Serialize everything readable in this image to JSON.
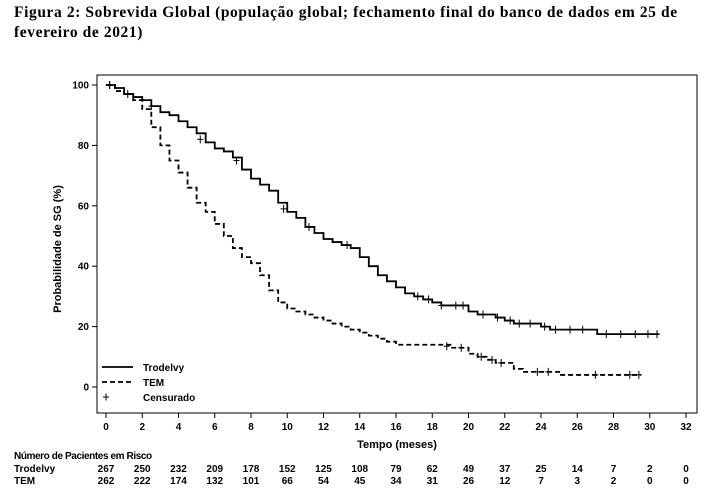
{
  "caption": "Figura 2: Sobrevida Global (população global; fechamento final do banco de dados em 25 de fevereiro de 2021)",
  "chart_data": {
    "type": "line",
    "title": "Figura 2: Sobrevida Global (população global; fechamento final do banco de dados em 25 de fevereiro de 2021)",
    "xlabel": "Tempo (meses)",
    "ylabel": "Probabilidade de SG (%)",
    "xlim": [
      0,
      32
    ],
    "ylim": [
      0,
      100
    ],
    "x_ticks": [
      0,
      2,
      4,
      6,
      8,
      10,
      12,
      14,
      16,
      18,
      20,
      22,
      24,
      26,
      28,
      30,
      32
    ],
    "y_ticks": [
      0,
      20,
      40,
      60,
      80,
      100
    ],
    "grid": false,
    "legend_position": "bottom-left",
    "legend": [
      {
        "label": "Trodelvy",
        "style": "solid"
      },
      {
        "label": "TEM",
        "style": "dashed"
      },
      {
        "label": "Censurado",
        "style": "marker-plus"
      }
    ],
    "series": [
      {
        "name": "Trodelvy",
        "style": "solid",
        "color": "#000000",
        "points": [
          [
            0,
            100
          ],
          [
            0.5,
            99
          ],
          [
            1,
            97
          ],
          [
            1.5,
            96
          ],
          [
            2,
            95
          ],
          [
            2.5,
            93
          ],
          [
            3,
            91
          ],
          [
            3.5,
            90
          ],
          [
            4,
            88
          ],
          [
            4.5,
            86
          ],
          [
            5,
            84
          ],
          [
            5.5,
            81
          ],
          [
            6,
            79
          ],
          [
            6.5,
            78
          ],
          [
            7,
            76
          ],
          [
            7.5,
            72
          ],
          [
            8,
            69
          ],
          [
            8.5,
            67
          ],
          [
            9,
            65
          ],
          [
            9.5,
            61
          ],
          [
            10,
            58
          ],
          [
            10.5,
            56
          ],
          [
            11,
            53
          ],
          [
            11.5,
            51
          ],
          [
            12,
            49
          ],
          [
            12.5,
            48
          ],
          [
            13,
            47
          ],
          [
            13.5,
            46
          ],
          [
            14,
            43
          ],
          [
            14.5,
            40
          ],
          [
            15,
            37
          ],
          [
            15.5,
            35
          ],
          [
            16,
            33
          ],
          [
            16.5,
            31
          ],
          [
            17,
            30
          ],
          [
            17.5,
            29
          ],
          [
            18,
            28
          ],
          [
            18.5,
            27
          ],
          [
            19,
            27
          ],
          [
            19.5,
            27
          ],
          [
            20,
            25
          ],
          [
            20.5,
            24
          ],
          [
            21,
            24
          ],
          [
            21.5,
            23
          ],
          [
            22,
            22
          ],
          [
            22.5,
            21
          ],
          [
            23,
            21
          ],
          [
            23.5,
            21
          ],
          [
            24,
            20
          ],
          [
            24.5,
            19
          ],
          [
            25,
            19
          ],
          [
            26,
            19
          ],
          [
            27,
            19
          ],
          [
            27.1,
            17.5
          ],
          [
            28,
            17.5
          ],
          [
            29,
            17.5
          ],
          [
            30,
            17.5
          ],
          [
            30.5,
            17.5
          ]
        ],
        "censored": [
          [
            0.2,
            100
          ],
          [
            1.2,
            97
          ],
          [
            2.5,
            93
          ],
          [
            5.2,
            82
          ],
          [
            7.2,
            75
          ],
          [
            9.8,
            59
          ],
          [
            11.2,
            53
          ],
          [
            13.3,
            47
          ],
          [
            17.2,
            30
          ],
          [
            17.8,
            29
          ],
          [
            18.5,
            27
          ],
          [
            19.3,
            27
          ],
          [
            19.7,
            27
          ],
          [
            20.8,
            24
          ],
          [
            21.6,
            23
          ],
          [
            22.3,
            22
          ],
          [
            22.8,
            21
          ],
          [
            23.4,
            21
          ],
          [
            24.2,
            20
          ],
          [
            24.8,
            19
          ],
          [
            25.6,
            19
          ],
          [
            26.3,
            19
          ],
          [
            27.6,
            17.5
          ],
          [
            28.4,
            17.5
          ],
          [
            29.2,
            17.5
          ],
          [
            29.9,
            17.5
          ],
          [
            30.4,
            17.5
          ]
        ]
      },
      {
        "name": "TEM",
        "style": "dashed",
        "color": "#000000",
        "points": [
          [
            0,
            100
          ],
          [
            0.5,
            98
          ],
          [
            1,
            97
          ],
          [
            1.5,
            95
          ],
          [
            2,
            92
          ],
          [
            2.5,
            86
          ],
          [
            3,
            80
          ],
          [
            3.5,
            75
          ],
          [
            4,
            71
          ],
          [
            4.5,
            66
          ],
          [
            5,
            61
          ],
          [
            5.5,
            58
          ],
          [
            6,
            54
          ],
          [
            6.5,
            50
          ],
          [
            7,
            46
          ],
          [
            7.5,
            43
          ],
          [
            8,
            41
          ],
          [
            8.5,
            37
          ],
          [
            9,
            32
          ],
          [
            9.5,
            28
          ],
          [
            10,
            26
          ],
          [
            10.5,
            25
          ],
          [
            11,
            24
          ],
          [
            11.5,
            23
          ],
          [
            12,
            22
          ],
          [
            12.5,
            21
          ],
          [
            13,
            20
          ],
          [
            13.5,
            19
          ],
          [
            14,
            18
          ],
          [
            14.5,
            17
          ],
          [
            15,
            16
          ],
          [
            15.5,
            15
          ],
          [
            16,
            14
          ],
          [
            17,
            14
          ],
          [
            18,
            14
          ],
          [
            19,
            13
          ],
          [
            19.5,
            13
          ],
          [
            20,
            11
          ],
          [
            20.5,
            10
          ],
          [
            21,
            9
          ],
          [
            21.5,
            8
          ],
          [
            22,
            8
          ],
          [
            22.5,
            6
          ],
          [
            23,
            5
          ],
          [
            24,
            5
          ],
          [
            25,
            4
          ],
          [
            26,
            4
          ],
          [
            27,
            4
          ],
          [
            28,
            4
          ],
          [
            29,
            4
          ],
          [
            29.5,
            4
          ]
        ],
        "censored": [
          [
            0.2,
            100
          ],
          [
            18.8,
            13.5
          ],
          [
            19.6,
            13
          ],
          [
            20.7,
            10
          ],
          [
            21.3,
            9
          ],
          [
            21.8,
            8
          ],
          [
            23.8,
            5
          ],
          [
            24.4,
            5
          ],
          [
            27,
            4
          ],
          [
            28.9,
            4
          ],
          [
            29.4,
            4
          ]
        ]
      }
    ],
    "risk_table": {
      "title": "Número de Pacientes em Risco",
      "times": [
        0,
        2,
        4,
        6,
        8,
        10,
        12,
        14,
        16,
        18,
        20,
        22,
        24,
        26,
        28,
        30,
        32
      ],
      "rows": [
        {
          "label": "Trodelvy",
          "values": [
            "267",
            "250",
            "232",
            "209",
            "178",
            "152",
            "125",
            "108",
            "79",
            "62",
            "49",
            "37",
            "25",
            "14",
            "7",
            "2",
            "0"
          ]
        },
        {
          "label": "TEM",
          "values": [
            "262",
            "222",
            "174",
            "132",
            "101",
            "66",
            "54",
            "45",
            "34",
            "31",
            "26",
            "12",
            "7",
            "3",
            "2",
            "0",
            "0"
          ]
        }
      ]
    }
  }
}
